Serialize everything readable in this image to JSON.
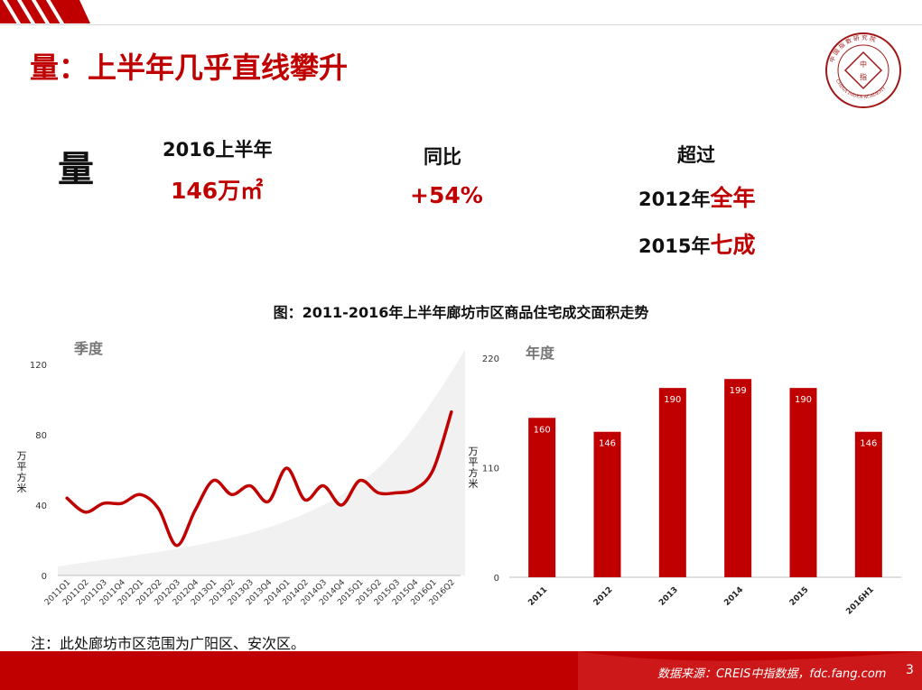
{
  "title": "量：上半年几乎直线攀升",
  "logo": {
    "text_ring": "中国指数研究院 CHINA INDEX ACADEMY",
    "center": "中指"
  },
  "kpis": {
    "big_char": "量",
    "period_label": "2016上半年",
    "period_value": "146万㎡",
    "yoy_label": "同比",
    "yoy_value": "+54%",
    "exceed_label": "超过",
    "exceed_line1_prefix": "2012年",
    "exceed_line1_highlight": "全年",
    "exceed_line2_prefix": "2015年",
    "exceed_line2_highlight": "七成"
  },
  "chart_title": "图：2011-2016年上半年廊坊市区商品住宅成交面积走势",
  "note": "注：此处廊坊市区范围为广阳区、安次区。",
  "footer": {
    "source": "数据来源：CREIS中指数据，fdc.fang.com",
    "page": "3"
  },
  "colors": {
    "accent": "#c00000",
    "footer_bar": "#c00000",
    "axis": "#bfbfbf"
  },
  "chart_data": [
    {
      "type": "line",
      "section_label": "季度",
      "ylabel": "万平方米",
      "ylim": [
        0,
        120
      ],
      "yticks": [
        "0",
        "40",
        "80",
        "120"
      ],
      "categories": [
        "2011Q1",
        "2011Q2",
        "2011Q3",
        "2011Q4",
        "2012Q1",
        "2012Q2",
        "2012Q3",
        "2012Q4",
        "2013Q1",
        "2013Q2",
        "2013Q3",
        "2013Q4",
        "2014Q1",
        "2014Q2",
        "2014Q3",
        "2014Q4",
        "2015Q1",
        "2015Q2",
        "2015Q3",
        "2015Q4",
        "2016Q1",
        "2016Q2"
      ],
      "values": [
        44,
        36,
        41,
        41,
        46,
        38,
        17,
        37,
        54,
        46,
        51,
        42,
        61,
        43,
        51,
        40,
        54,
        47,
        47,
        49,
        60,
        93
      ],
      "color": "#c00000"
    },
    {
      "type": "bar",
      "section_label": "年度",
      "ylabel": "万平方米",
      "ylim": [
        0,
        220
      ],
      "yticks": [
        "0",
        "110",
        "220"
      ],
      "categories": [
        "2011",
        "2012",
        "2013",
        "2014",
        "2015",
        "2016H1"
      ],
      "values": [
        160,
        146,
        190,
        199,
        190,
        146
      ],
      "data_labels": [
        "160",
        "146",
        "190",
        "199",
        "190",
        "146"
      ],
      "color": "#c00000"
    }
  ]
}
